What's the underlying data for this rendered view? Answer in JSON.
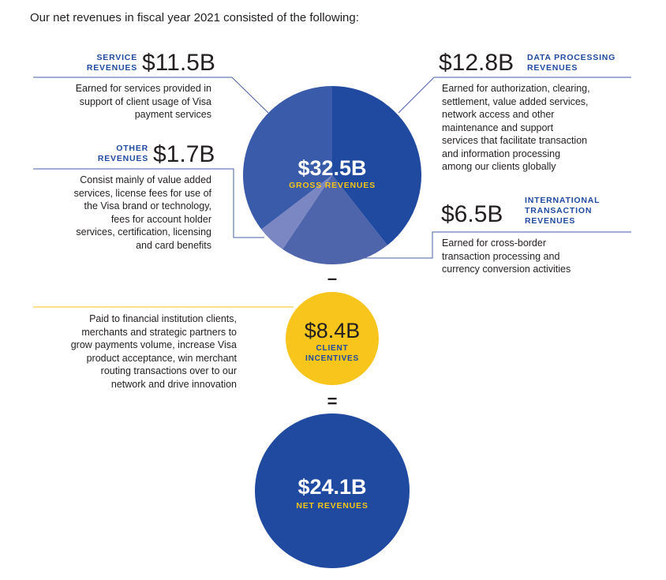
{
  "intro": "Our net revenues in fiscal year 2021 consisted of the following:",
  "chart_data": {
    "type": "pie",
    "title": "Gross Revenues",
    "total": {
      "value": "$32.5B",
      "label": "GROSS REVENUES"
    },
    "slices": [
      {
        "name": "Data Processing Revenues",
        "value": 12.8,
        "color": "#1f4aa0"
      },
      {
        "name": "International Transaction Revenues",
        "value": 6.5,
        "color": "#4e64ab"
      },
      {
        "name": "Other Revenues",
        "value": 1.7,
        "color": "#7b87c2"
      },
      {
        "name": "Service Revenues",
        "value": 11.5,
        "color": "#3a5aaa"
      }
    ],
    "client_incentives": {
      "value": 8.4,
      "display": "$8.4B",
      "label": "CLIENT INCENTIVES",
      "color": "#f7c51c"
    },
    "net_revenues": {
      "value": 24.1,
      "display": "$24.1B",
      "label": "NET REVENUES",
      "color": "#1f4aa0"
    },
    "units": "USD billions"
  },
  "segments": {
    "service": {
      "label_line1": "SERVICE",
      "label_line2": "REVENUES",
      "amount": "$11.5B",
      "desc_lines": [
        "Earned for services provided in",
        "support of client usage of Visa",
        "payment services"
      ]
    },
    "data_processing": {
      "label_line1": "DATA PROCESSING",
      "label_line2": "REVENUES",
      "amount": "$12.8B",
      "desc_lines": [
        "Earned for authorization, clearing,",
        "settlement, value added services,",
        "network access and other",
        "maintenance and support",
        "services that facilitate transaction",
        "and information processing",
        "among our clients globally"
      ]
    },
    "other": {
      "label_line1": "OTHER",
      "label_line2": "REVENUES",
      "amount": "$1.7B",
      "desc_lines": [
        "Consist mainly of value added",
        "services, license fees for use of",
        "the Visa brand or technology,",
        "fees for account holder",
        "services, certification, licensing",
        "and card benefits"
      ]
    },
    "international": {
      "label_line1": "INTERNATIONAL",
      "label_line2": "TRANSACTION",
      "label_line3": "REVENUES",
      "amount": "$6.5B",
      "desc_lines": [
        "Earned for cross-border",
        "transaction processing and",
        "currency conversion activities"
      ]
    },
    "incentives": {
      "desc_lines": [
        "Paid to financial institution clients,",
        "merchants and strategic partners to",
        "grow payments volume, increase Visa",
        "product acceptance, win merchant",
        "routing transactions over to our",
        "network and drive innovation"
      ],
      "label_line1": "CLIENT",
      "label_line2": "INCENTIVES"
    }
  },
  "operators": {
    "minus": "–",
    "equals": "="
  },
  "colors": {
    "navy": "#1f4aa0",
    "yellow": "#f7c51c",
    "line": "#4a5fa8"
  }
}
